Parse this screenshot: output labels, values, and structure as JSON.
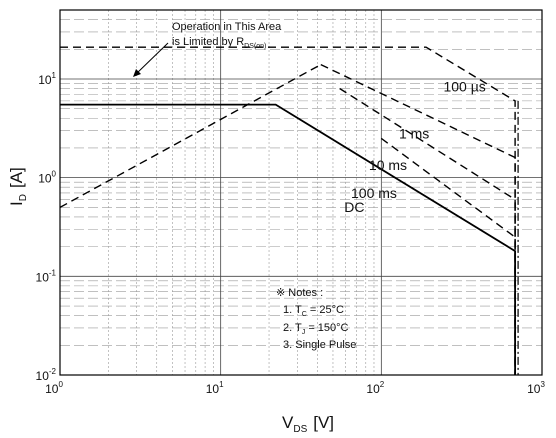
{
  "chart_data": {
    "type": "line",
    "x_scale": "log",
    "y_scale": "log",
    "xlim": [
      1,
      1000
    ],
    "ylim": [
      0.01,
      50
    ],
    "grid": true,
    "x_ticks": [
      {
        "base": "10",
        "exp": "0"
      },
      {
        "base": "10",
        "exp": "1"
      },
      {
        "base": "10",
        "exp": "2"
      },
      {
        "base": "10",
        "exp": "3"
      }
    ],
    "y_ticks": [
      {
        "base": "10",
        "exp": "-2"
      },
      {
        "base": "10",
        "exp": "-1"
      },
      {
        "base": "10",
        "exp": "0"
      },
      {
        "base": "10",
        "exp": "1"
      }
    ],
    "xlabel": {
      "main": "V",
      "sub": "DS",
      "unit": "[V]"
    },
    "ylabel": {
      "main": "I",
      "sub": "D",
      "unit": "[A]"
    },
    "series": [
      {
        "name": "100 µs",
        "style": "dashed",
        "x": [
          1,
          55,
          190,
          680,
          680
        ],
        "y": [
          21,
          21,
          21,
          6,
          0.01
        ]
      },
      {
        "name": "1 ms",
        "style": "dashed",
        "x": [
          42,
          680,
          680
        ],
        "y": [
          14,
          1.6,
          0.01
        ]
      },
      {
        "name": "10 ms",
        "style": "dashed",
        "x": [
          55,
          680,
          680
        ],
        "y": [
          8,
          0.6,
          0.01
        ]
      },
      {
        "name": "100 ms",
        "style": "dashed",
        "x": [
          100,
          680,
          680
        ],
        "y": [
          2.5,
          0.25,
          0.01
        ]
      },
      {
        "name": "DC",
        "style": "solid",
        "x": [
          1,
          22,
          680,
          680
        ],
        "y": [
          5.5,
          5.5,
          0.18,
          0.01
        ]
      },
      {
        "name": "",
        "style": "dashed",
        "x": [
          1,
          42
        ],
        "y": [
          0.5,
          14
        ]
      }
    ],
    "series_labels": [
      {
        "text": "100 µs",
        "x": 330,
        "y": 7.5
      },
      {
        "text": "1 ms",
        "x": 160,
        "y": 2.5
      },
      {
        "text": "10 ms",
        "x": 110,
        "y": 1.2
      },
      {
        "text": "100 ms",
        "x": 90,
        "y": 0.62
      },
      {
        "text": "DC",
        "x": 68,
        "y": 0.45
      }
    ],
    "annotation": {
      "line1": "Operation in This Area",
      "line2_main": "is Limited by R",
      "line2_sub": "DS(on)"
    },
    "notes": {
      "title": "※ Notes :",
      "n1_pre": "1. T",
      "n1_sub": "C",
      "n1_post": " = 25°C",
      "n2_pre": "2. T",
      "n2_sub": "J",
      "n2_post": " = 150°C",
      "n3": "3. Single Pulse"
    }
  }
}
